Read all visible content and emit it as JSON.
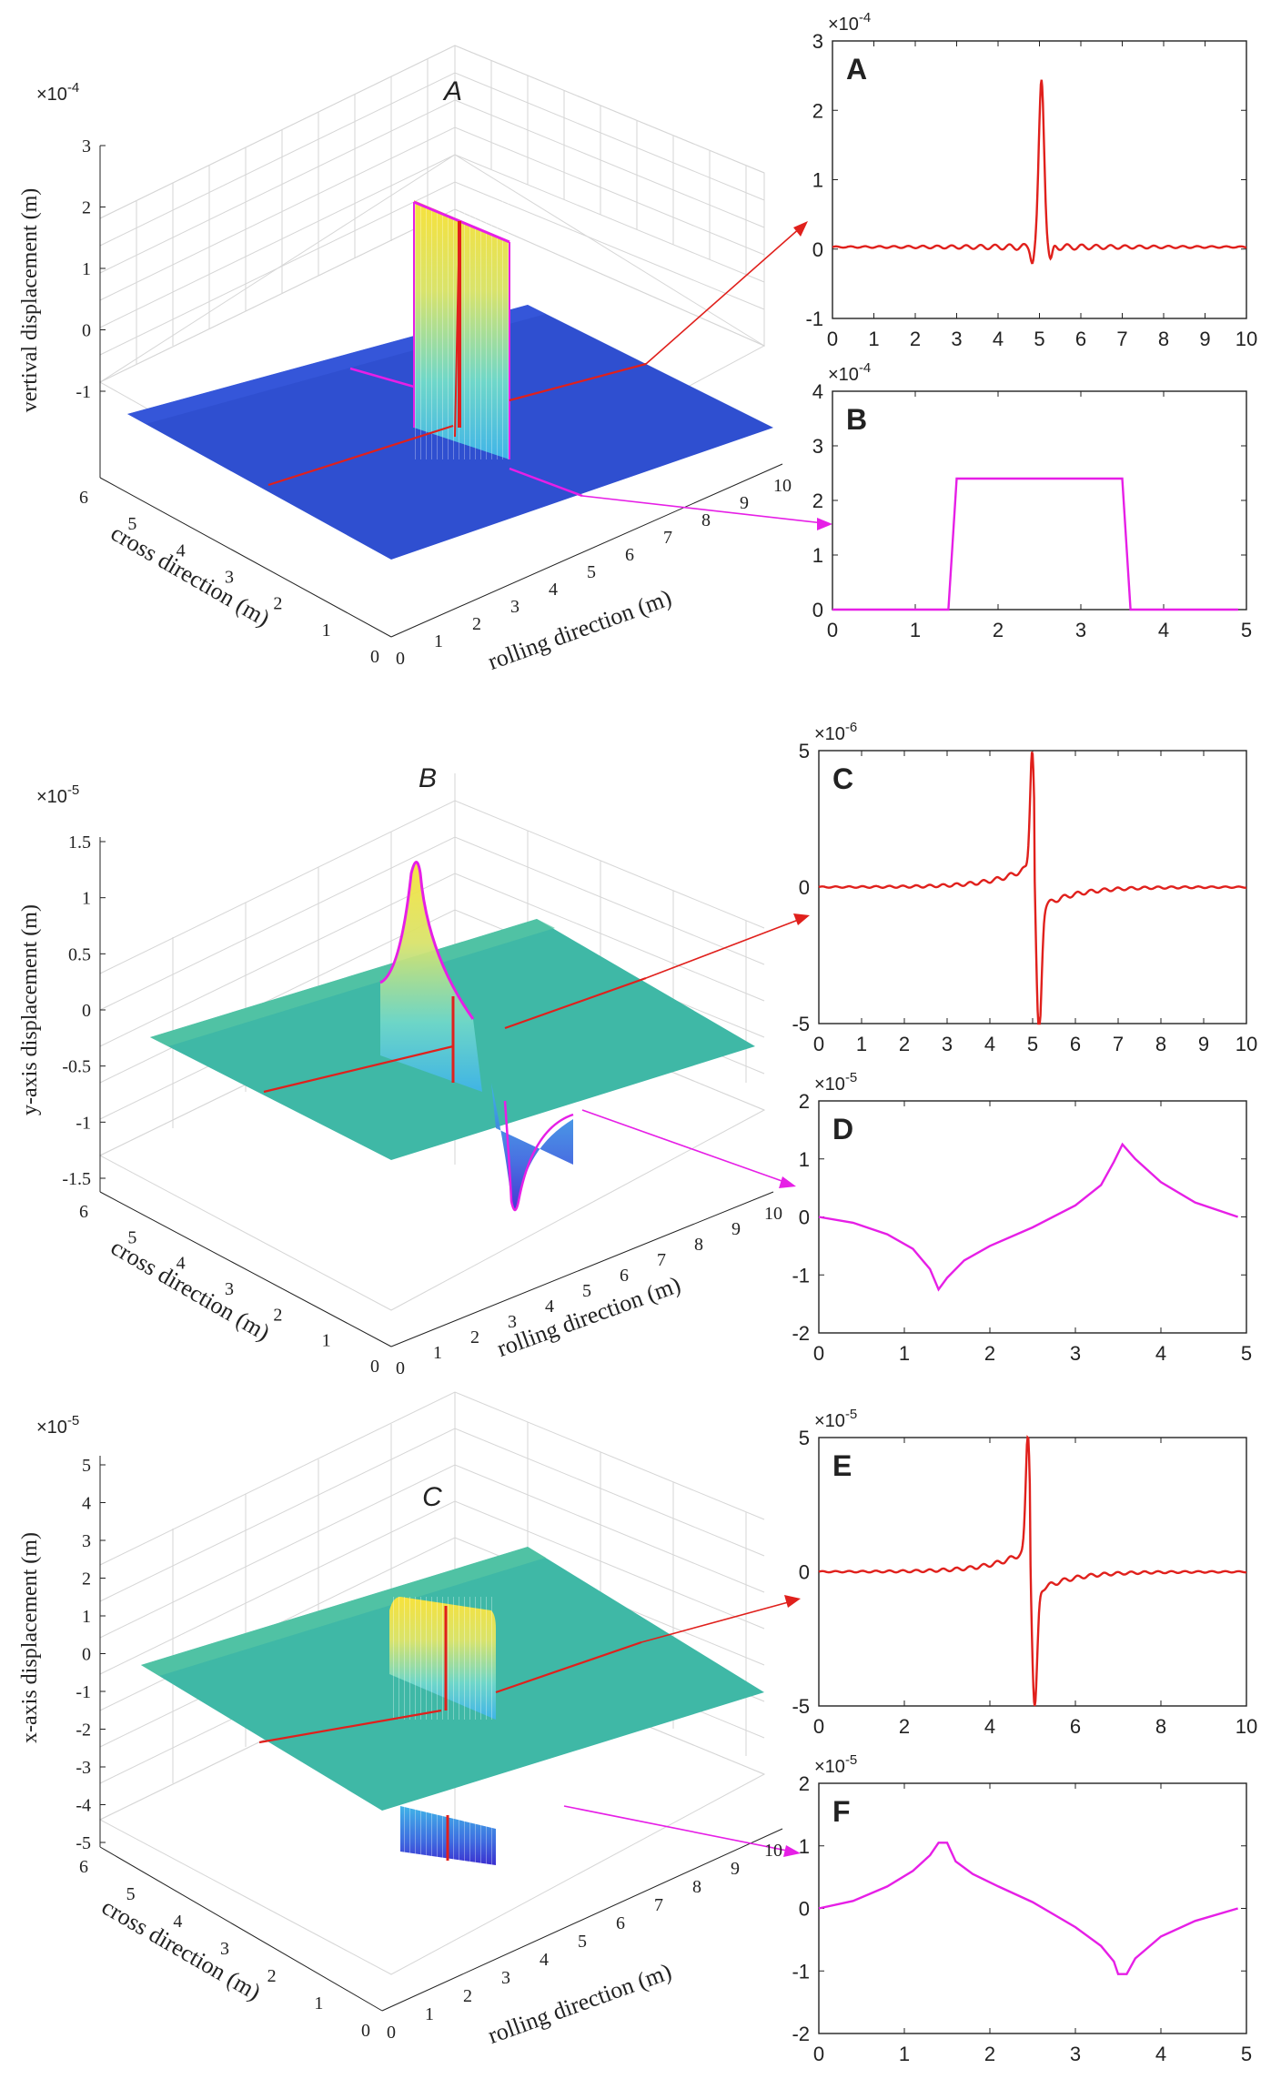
{
  "colors": {
    "red": "#e0201c",
    "magenta": "#e61fe6",
    "blue_surface": "#2f4fd0",
    "teal_surface": "#3fb8a6",
    "axis": "#222222",
    "grid": "#d6d6d6"
  },
  "panels3d": [
    {
      "letter": "A",
      "exponent": "×10-4",
      "exp_base": "×10",
      "exp_sup": "-4",
      "zlabel": "vertival displacement (m)",
      "xlabel": "rolling direction (m)",
      "ylabel": "cross direction (m)",
      "zticks": [
        "3",
        "2",
        "1",
        "0",
        "-1"
      ],
      "xticks": [
        "0",
        "1",
        "2",
        "3",
        "4",
        "5",
        "6",
        "7",
        "8",
        "9",
        "10"
      ],
      "yticks": [
        "6",
        "5",
        "4",
        "3",
        "2",
        "1",
        "0"
      ]
    },
    {
      "letter": "B",
      "exponent": "×10-5",
      "exp_base": "×10",
      "exp_sup": "-5",
      "zlabel": "y-axis displacement (m)",
      "xlabel": "rolling direction (m)",
      "ylabel": "cross direction (m)",
      "zticks": [
        "1.5",
        "1",
        "0.5",
        "0",
        "-0.5",
        "-1",
        "-1.5"
      ],
      "xticks": [
        "0",
        "1",
        "2",
        "3",
        "4",
        "5",
        "6",
        "7",
        "8",
        "9",
        "10"
      ],
      "yticks": [
        "6",
        "5",
        "4",
        "3",
        "2",
        "1",
        "0"
      ]
    },
    {
      "letter": "C",
      "exponent": "×10-5",
      "exp_base": "×10",
      "exp_sup": "-5",
      "zlabel": "x-axis displacement (m)",
      "xlabel": "rolling direction (m)",
      "ylabel": "cross direction (m)",
      "zticks": [
        "5",
        "4",
        "3",
        "2",
        "1",
        "0",
        "-1",
        "-2",
        "-3",
        "-4",
        "-5"
      ],
      "xticks": [
        "0",
        "1",
        "2",
        "3",
        "4",
        "5",
        "6",
        "7",
        "8",
        "9",
        "10"
      ],
      "yticks": [
        "6",
        "5",
        "4",
        "3",
        "2",
        "1",
        "0"
      ]
    }
  ],
  "chart_data": [
    {
      "id": "A",
      "type": "line",
      "color": "red",
      "shape": "pulse",
      "exp_base": "×10",
      "exp_sup": "-4",
      "xlim": [
        0,
        10
      ],
      "ylim": [
        -1,
        3
      ],
      "xticks": [
        "0",
        "1",
        "2",
        "3",
        "4",
        "5",
        "6",
        "7",
        "8",
        "9",
        "10"
      ],
      "yticks": [
        "3",
        "2",
        "1",
        "0",
        "-1"
      ],
      "xtickvals": [
        0,
        1,
        2,
        3,
        4,
        5,
        6,
        7,
        8,
        9,
        10
      ],
      "ytickvals": [
        3,
        2,
        1,
        0,
        -1
      ],
      "params": {
        "center": 5.05,
        "peak": 2.4,
        "dip": -0.2,
        "ripple": 0.05,
        "base": 0.03
      }
    },
    {
      "id": "B",
      "type": "line",
      "color": "magenta",
      "shape": "plateau",
      "exp_base": "×10",
      "exp_sup": "-4",
      "xlim": [
        0,
        5
      ],
      "ylim": [
        0,
        4
      ],
      "xticks": [
        "0",
        "1",
        "2",
        "3",
        "4",
        "5"
      ],
      "yticks": [
        "4",
        "3",
        "2",
        "1",
        "0"
      ],
      "xtickvals": [
        0,
        1,
        2,
        3,
        4,
        5
      ],
      "ytickvals": [
        4,
        3,
        2,
        1,
        0
      ],
      "x": [
        0,
        1.4,
        1.5,
        3.5,
        3.6,
        4.9
      ],
      "y": [
        0,
        0,
        2.4,
        2.4,
        0,
        0
      ]
    },
    {
      "id": "C",
      "type": "line",
      "color": "red",
      "shape": "antisym",
      "exp_base": "×10",
      "exp_sup": "-6",
      "xlim": [
        0,
        10
      ],
      "ylim": [
        -5,
        5
      ],
      "xticks": [
        "0",
        "1",
        "2",
        "3",
        "4",
        "5",
        "6",
        "7",
        "8",
        "9",
        "10"
      ],
      "yticks": [
        "5",
        "0",
        "-5"
      ],
      "xtickvals": [
        0,
        1,
        2,
        3,
        4,
        5,
        6,
        7,
        8,
        9,
        10
      ],
      "ytickvals": [
        5,
        0,
        -5
      ],
      "params": {
        "center": 5.05,
        "peak": 4.3,
        "dip": -4.7,
        "ripple": 0.1
      }
    },
    {
      "id": "D",
      "type": "line",
      "color": "magenta",
      "shape": "cusps",
      "exp_base": "×10",
      "exp_sup": "-5",
      "xlim": [
        0,
        5
      ],
      "ylim": [
        -2,
        2
      ],
      "xticks": [
        "0",
        "1",
        "2",
        "3",
        "4",
        "5"
      ],
      "yticks": [
        "2",
        "1",
        "0",
        "-1",
        "-2"
      ],
      "xtickvals": [
        0,
        1,
        2,
        3,
        4,
        5
      ],
      "ytickvals": [
        2,
        1,
        0,
        -1,
        -2
      ],
      "x": [
        0,
        0.4,
        0.8,
        1.1,
        1.3,
        1.4,
        1.5,
        1.7,
        2.0,
        2.5,
        3.0,
        3.3,
        3.45,
        3.55,
        3.7,
        4.0,
        4.4,
        4.9
      ],
      "y": [
        0,
        -0.1,
        -0.3,
        -0.55,
        -0.9,
        -1.25,
        -1.05,
        -0.75,
        -0.5,
        -0.18,
        0.2,
        0.55,
        0.95,
        1.25,
        1.0,
        0.6,
        0.25,
        0
      ]
    },
    {
      "id": "E",
      "type": "line",
      "color": "red",
      "shape": "antisym",
      "exp_base": "×10",
      "exp_sup": "-5",
      "xlim": [
        0,
        10
      ],
      "ylim": [
        -5,
        5
      ],
      "xticks": [
        "0",
        "2",
        "4",
        "6",
        "8",
        "10"
      ],
      "yticks": [
        "5",
        "0",
        "-5"
      ],
      "xtickvals": [
        0,
        2,
        4,
        6,
        8,
        10
      ],
      "ytickvals": [
        5,
        0,
        -5
      ],
      "params": {
        "center": 4.95,
        "peak": 4.4,
        "dip": -4.3,
        "ripple": 0.1
      }
    },
    {
      "id": "F",
      "type": "line",
      "color": "magenta",
      "shape": "cusps",
      "exp_base": "×10",
      "exp_sup": "-5",
      "xlim": [
        0,
        5
      ],
      "ylim": [
        -2,
        2
      ],
      "xticks": [
        "0",
        "1",
        "2",
        "3",
        "4",
        "5"
      ],
      "yticks": [
        "2",
        "1",
        "0",
        "-1",
        "-2"
      ],
      "xtickvals": [
        0,
        1,
        2,
        3,
        4,
        5
      ],
      "ytickvals": [
        2,
        1,
        0,
        -1,
        -2
      ],
      "x": [
        0,
        0.4,
        0.8,
        1.1,
        1.3,
        1.4,
        1.5,
        1.6,
        1.8,
        2.1,
        2.5,
        3.0,
        3.3,
        3.45,
        3.5,
        3.6,
        3.7,
        4.0,
        4.4,
        4.9
      ],
      "y": [
        0,
        0.12,
        0.35,
        0.6,
        0.85,
        1.05,
        1.05,
        0.75,
        0.55,
        0.35,
        0.1,
        -0.3,
        -0.6,
        -0.85,
        -1.05,
        -1.05,
        -0.8,
        -0.45,
        -0.2,
        0
      ]
    }
  ]
}
